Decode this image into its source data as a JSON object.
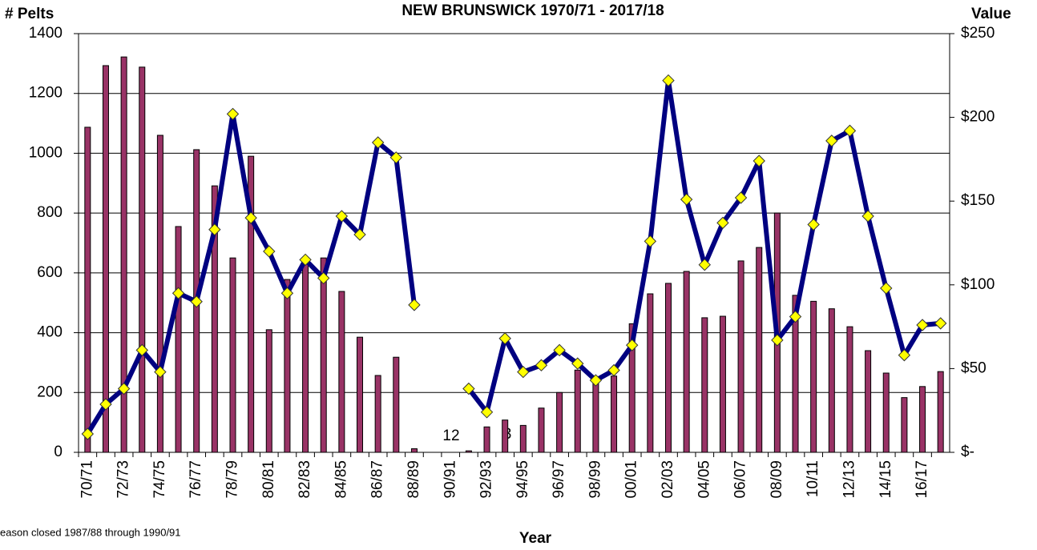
{
  "chart_data": {
    "type": "bar-line",
    "title": "NEW BRUNSWICK 1970/71 - 2017/18",
    "y_label": "# Pelts",
    "y2_label": "Value",
    "x_label": "Year",
    "notes": [
      "eason closed 1987/88 through 1990/91"
    ],
    "annotations": [
      "12",
      "3"
    ],
    "categories": [
      "70/71",
      null,
      "72/73",
      null,
      "74/75",
      null,
      "76/77",
      null,
      "78/79",
      null,
      "80/81",
      null,
      "82/83",
      null,
      "84/85",
      null,
      "86/87",
      null,
      "88/89",
      null,
      "90/91",
      null,
      "92/93",
      null,
      "94/95",
      null,
      "96/97",
      null,
      "98/99",
      null,
      "00/01",
      null,
      "02/03",
      null,
      "04/05",
      null,
      "06/07",
      null,
      "08/09",
      null,
      "10/11",
      null,
      "12/13",
      null,
      "14/15",
      null,
      "16/17",
      null
    ],
    "series": [
      {
        "name": "# Pelts",
        "color": "#993366",
        "kind": "bar",
        "values": [
          1087,
          1293,
          1322,
          1288,
          1060,
          755,
          1012,
          891,
          650,
          990,
          410,
          578,
          645,
          650,
          538,
          385,
          257,
          318,
          12,
          null,
          null,
          5,
          85,
          108,
          90,
          148,
          200,
          275,
          245,
          255,
          430,
          530,
          565,
          605,
          450,
          455,
          640,
          685,
          800,
          525,
          505,
          480,
          420,
          340,
          265,
          183,
          220,
          270
        ]
      },
      {
        "name": "Value",
        "color": "#000080",
        "marker_color": "#ffff00",
        "kind": "line",
        "axis": "y2",
        "values": [
          11,
          28.7,
          38,
          61,
          48,
          95,
          90,
          133,
          202,
          140,
          120,
          95,
          115,
          104,
          141,
          130,
          185,
          176,
          88,
          null,
          null,
          38,
          24,
          68,
          48,
          52,
          61,
          53,
          43,
          49,
          64,
          126,
          222,
          151,
          112,
          137,
          152,
          174,
          67,
          81,
          136,
          186,
          192,
          141,
          98,
          58,
          76,
          77
        ]
      }
    ],
    "ylim": [
      0,
      1400
    ],
    "yticks": [
      0,
      200,
      400,
      600,
      800,
      1000,
      1200,
      1400
    ],
    "y2lim": [
      0,
      250
    ],
    "y2ticks": [
      {
        "value": 0,
        "label": "$-"
      },
      {
        "value": 50,
        "label": "$50"
      },
      {
        "value": 100,
        "label": "$100"
      },
      {
        "value": 150,
        "label": "$150"
      },
      {
        "value": 200,
        "label": "$200"
      },
      {
        "value": 250,
        "label": "$250"
      }
    ],
    "grid": true
  }
}
